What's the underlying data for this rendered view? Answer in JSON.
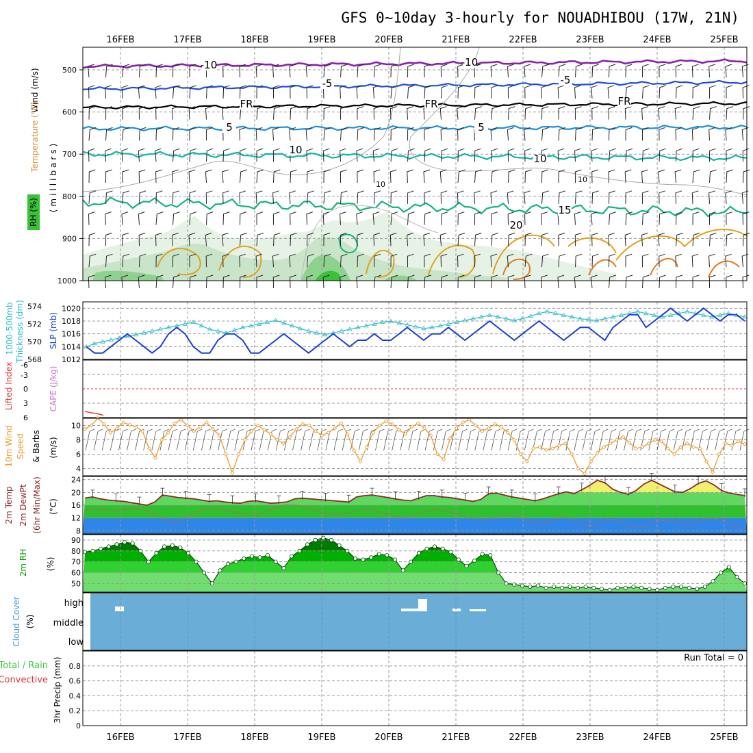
{
  "title": "GFS 0~10day 3-hourly for NOUADHIBOU (17W, 21N)",
  "colors": {
    "grid": "#9a9a9a",
    "frame": "#000000",
    "rh_light": "#e6f2e6",
    "rh_mid": "#c9e4c9",
    "rh_dark": "#8fd18f",
    "rh_darkest": "#38c238",
    "t_m10": "#8a1fb0",
    "t_m5": "#1f4fd6",
    "t_fr": "#000000",
    "t_5": "#1b90d8",
    "t_10": "#12b5a5",
    "t_15": "#12b576",
    "t_20": "#e0a01e",
    "t_25": "#e07a1e",
    "slp": "#1a3fd6",
    "thickness": "#2fbcc8",
    "lifted": "#e03a3a",
    "cape": "#c878c8",
    "wind10": "#e89a2a",
    "barb": "#222222",
    "temp2m": "#8b2a2a",
    "dewpt": "#c06060",
    "band_blue": "#2f86e6",
    "band_green": "#2fbf2f",
    "band_lgreen": "#5fd85f",
    "band_yellow": "#f0f06a",
    "rh_band1": "#007a00",
    "rh_band2": "#00b000",
    "rh_band3": "#2fd02f",
    "rh_band4": "#6fde6f",
    "cloud_bg": "#6aaed8",
    "cloud_bar": "#ffffff",
    "precip_total": "#3ac83a",
    "precip_conv": "#e03a3a"
  },
  "dates": [
    "16FEB",
    "17FEB",
    "18FEB",
    "19FEB",
    "20FEB",
    "21FEB",
    "22FEB",
    "23FEB",
    "24FEB",
    "25FEB"
  ],
  "panels": {
    "upper": {
      "ylabel_wind": "Wind (m/s)",
      "ylabel_temp": "Temperature (°C)",
      "ylabel_rh": "RH (%)",
      "ylabel_units": "(millibars)",
      "ticks": [
        "500",
        "600",
        "700",
        "800",
        "900",
        "1000"
      ],
      "labels": {
        "m10": "-10",
        "m5": "-5",
        "fr": "FR",
        "p5": "5",
        "p10": "10",
        "p15": "15",
        "p20": "20",
        "grey10": "10"
      }
    },
    "thickness": {
      "ylabel_thick": "1000-500mb",
      "ylabel_thick2": "Thickness (dm)",
      "ylabel_slp": "SLP (mb)",
      "ticks_left": [
        "568",
        "570",
        "572",
        "574"
      ],
      "ticks_right": [
        "1012",
        "1014",
        "1016",
        "1018",
        "1020"
      ]
    },
    "stability": {
      "ylabel_li": "Lifted Index",
      "ylabel_cape": "CAPE (J/kg)",
      "ticks": [
        "-6",
        "-3",
        "0",
        "3",
        "6"
      ]
    },
    "wind10": {
      "ylabel": "10m Wind",
      "ylabel2": "Speed",
      "ylabel3": "& Barbs",
      "units": "(m/s)",
      "ticks": [
        "4",
        "6",
        "8",
        "10"
      ]
    },
    "temp2m": {
      "ylabel": "2m Temp",
      "ylabel2": "2m DewPt",
      "ylabel3": "(6hr Min/Max)",
      "units": "(°C)",
      "ticks": [
        "8",
        "12",
        "16",
        "20",
        "24"
      ]
    },
    "rh2m": {
      "ylabel": "2m RH",
      "units": "(%)",
      "ticks": [
        "50",
        "60",
        "70",
        "80",
        "90"
      ]
    },
    "cloud": {
      "ylabel": "Cloud Cover",
      "units": "(%)",
      "levels": [
        "high",
        "middle",
        "low"
      ]
    },
    "precip": {
      "ylabel_total": "Total / Rain",
      "ylabel_conv": "Convective",
      "ylabel": "3hr Precip (mm)",
      "run_total": "Run Total = 0",
      "ticks": [
        "0",
        "0.2",
        "0.4",
        "0.6",
        "0.8"
      ]
    }
  },
  "chart_data": [
    {
      "type": "line",
      "title": "SLP (mb) / 1000-500mb Thickness (dm)",
      "series": [
        {
          "name": "SLP (mb)",
          "axis": "right",
          "values": [
            1014,
            1013,
            1013,
            1014,
            1015,
            1016,
            1015,
            1014,
            1013,
            1014,
            1016,
            1017,
            1016,
            1014,
            1013,
            1013,
            1015,
            1016,
            1016,
            1015,
            1013,
            1013,
            1014,
            1015,
            1016,
            1015,
            1014,
            1013,
            1014,
            1015,
            1016,
            1015,
            1014,
            1015,
            1015,
            1016,
            1015,
            1015,
            1016,
            1017,
            1016,
            1015,
            1016,
            1016,
            1017,
            1016,
            1015,
            1016,
            1017,
            1018,
            1017,
            1016,
            1015,
            1016,
            1017,
            1018,
            1017,
            1016,
            1015,
            1016,
            1017,
            1017,
            1016,
            1015,
            1017,
            1018,
            1019,
            1019,
            1017,
            1018,
            1019,
            1020,
            1019,
            1018,
            1019,
            1020,
            1019,
            1018,
            1019,
            1019,
            1018
          ],
          "ylim": [
            1012,
            1021
          ]
        },
        {
          "name": "1000-500mb Thickness (dm)",
          "axis": "left",
          "values": [
            569.4,
            569.8,
            570.0,
            570.2,
            570.4,
            570.6,
            570.8,
            571.0,
            571.2,
            571.4,
            571.6,
            571.8,
            572.0,
            572.2,
            571.8,
            571.4,
            571.2,
            571.0,
            571.3,
            571.6,
            571.8,
            572.0,
            572.2,
            572.4,
            572.1,
            571.8,
            571.5,
            571.2,
            571.0,
            570.8,
            571.0,
            571.2,
            571.4,
            571.6,
            571.8,
            572.0,
            572.2,
            572.3,
            572.1,
            571.9,
            571.7,
            571.5,
            571.6,
            571.8,
            572.0,
            572.2,
            572.4,
            572.6,
            572.8,
            573.0,
            572.8,
            572.6,
            572.4,
            572.6,
            572.9,
            573.2,
            573.4,
            573.2,
            573.0,
            572.8,
            572.6,
            572.5,
            572.4,
            572.6,
            572.8,
            573.0,
            573.2,
            573.4,
            573.2,
            573.0,
            572.8,
            573.0,
            573.2,
            573.4,
            573.2,
            573.0,
            572.8,
            573.0,
            573.2,
            573.0,
            572.8
          ],
          "ylim": [
            568,
            574.5
          ]
        }
      ]
    },
    {
      "type": "line",
      "title": "10m Wind Speed (m/s)",
      "values": [
        9.5,
        10.0,
        11.0,
        10.2,
        9.0,
        9.6,
        10.4,
        10.1,
        9.8,
        9.2,
        6.8,
        5.5,
        8.0,
        9.0,
        10.3,
        10.8,
        10.0,
        9.2,
        9.8,
        10.4,
        9.5,
        8.6,
        6.0,
        3.4,
        6.0,
        8.0,
        9.2,
        10.0,
        9.4,
        8.8,
        8.0,
        7.5,
        8.4,
        9.5,
        10.2,
        10.0,
        9.2,
        8.6,
        9.0,
        9.6,
        10.3,
        8.8,
        6.5,
        5.0,
        7.0,
        9.0,
        10.0,
        10.6,
        10.2,
        9.4,
        8.8,
        9.8,
        10.3,
        9.6,
        8.6,
        6.0,
        5.3,
        8.2,
        9.6,
        10.4,
        10.8,
        10.0,
        9.2,
        9.6,
        10.2,
        9.8,
        9.0,
        8.0,
        6.0,
        5.0,
        6.8,
        7.0,
        6.6,
        6.8,
        7.2,
        7.5,
        6.0,
        4.0,
        3.3,
        5.0,
        6.2,
        7.0,
        7.5,
        8.0,
        8.4,
        7.6,
        6.8,
        7.0,
        7.5,
        8.0,
        7.8,
        6.8,
        6.0,
        7.0,
        7.5,
        7.0,
        6.8,
        5.0,
        3.5,
        6.0,
        7.5,
        7.2,
        7.8,
        7.4
      ],
      "ylim": [
        3,
        11
      ]
    },
    {
      "type": "area",
      "title": "2m Temp / 2m DewPt (°C)",
      "series": [
        {
          "name": "2m Temp",
          "values": [
            18.2,
            18.6,
            18.0,
            17.6,
            17.4,
            17.2,
            16.8,
            16.4,
            16.0,
            17.0,
            19.2,
            18.8,
            18.4,
            18.2,
            18.0,
            17.6,
            17.2,
            17.4,
            17.0,
            16.8,
            16.6,
            17.2,
            17.4,
            17.0,
            16.6,
            16.8,
            17.0,
            18.0,
            18.2,
            18.0,
            17.8,
            17.6,
            17.4,
            17.2,
            17.0,
            18.6,
            19.0,
            19.2,
            18.8,
            18.4,
            18.0,
            17.6,
            17.4,
            18.2,
            19.0,
            19.0,
            18.6,
            18.4,
            18.0,
            17.6,
            17.2,
            17.8,
            19.6,
            19.8,
            19.2,
            18.6,
            18.2,
            17.8,
            17.4,
            18.0,
            18.8,
            19.6,
            20.2,
            19.6,
            20.8,
            22.2,
            23.8,
            23.0,
            21.0,
            20.0,
            19.4,
            20.6,
            22.6,
            23.8,
            22.6,
            21.4,
            20.2,
            20.0,
            21.2,
            22.8,
            23.6,
            22.4,
            20.6,
            19.8,
            19.4,
            19.0
          ]
        },
        {
          "name": "2m DewPt",
          "values": [
            14.5,
            14.8,
            14.6,
            14.4,
            14.2,
            14.6,
            15.2,
            14.8,
            13.8,
            12.6,
            11.2,
            10.2,
            11.6,
            13.0,
            14.2,
            14.8,
            15.0,
            14.6,
            14.2,
            13.6,
            13.0,
            12.8,
            13.6,
            14.8,
            15.8,
            16.2,
            16.0,
            15.4,
            14.6,
            13.8,
            13.2,
            13.0,
            13.4,
            14.2,
            14.8,
            14.6,
            14.0,
            13.2,
            12.6,
            12.2,
            12.6,
            13.4,
            14.2,
            14.6,
            14.4,
            13.8,
            13.0,
            12.2,
            11.6,
            11.4,
            12.0,
            12.6,
            12.8,
            12.4,
            11.6,
            10.4,
            10.0,
            10.8,
            11.8,
            12.2,
            11.2,
            10.2,
            9.6,
            10.0,
            11.2,
            11.6,
            10.6,
            9.4,
            8.8,
            9.6,
            10.8,
            11.2,
            11.0,
            10.4,
            9.8,
            10.6,
            11.6,
            12.0,
            11.4,
            10.2,
            9.0,
            8.6
          ]
        }
      ],
      "ylim": [
        7,
        25
      ]
    },
    {
      "type": "area",
      "title": "2m RH (%)",
      "values": [
        79,
        80,
        82,
        84,
        86,
        88,
        87,
        80,
        70,
        78,
        84,
        85,
        83,
        78,
        70,
        60,
        50,
        62,
        68,
        70,
        73,
        75,
        74,
        76,
        70,
        64,
        75,
        80,
        86,
        90,
        92,
        90,
        85,
        80,
        73,
        72,
        74,
        77,
        76,
        72,
        62,
        70,
        78,
        82,
        84,
        82,
        79,
        72,
        66,
        71,
        77,
        76,
        60,
        50,
        49,
        48,
        47,
        48,
        46,
        47,
        46,
        47,
        46,
        47,
        46,
        45,
        44,
        46,
        46,
        47,
        46,
        45,
        44,
        46,
        47,
        47,
        46,
        45,
        47,
        52,
        60,
        65,
        56,
        50
      ],
      "ylim": [
        42,
        95
      ]
    },
    {
      "type": "bar",
      "title": "Cloud Cover (%)",
      "categories": [
        "high",
        "middle",
        "low"
      ],
      "values": [
        0,
        0,
        0
      ],
      "note": ""
    },
    {
      "type": "bar",
      "title": "3hr Precip (mm)",
      "values": [],
      "ylim": [
        0,
        1
      ]
    }
  ]
}
